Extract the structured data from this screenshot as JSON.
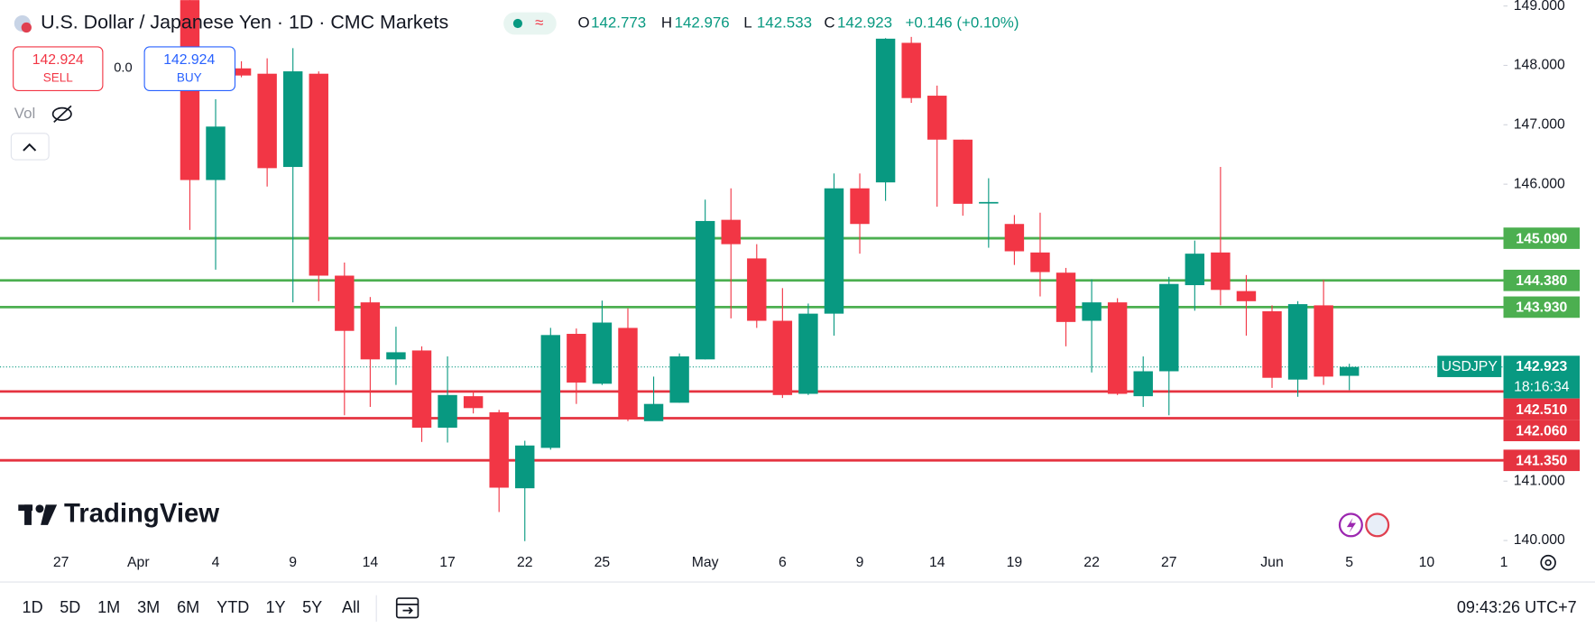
{
  "header": {
    "title": "U.S. Dollar / Japanese Yen · 1D · CMC Markets",
    "ohlc_labels": [
      "O",
      "H",
      "L",
      "C"
    ],
    "change": "+0.146 (+0.10%)"
  },
  "trade": {
    "sell_price": "142.924",
    "sell_label": "SELL",
    "spread": "0.0",
    "buy_price": "142.924",
    "buy_label": "BUY"
  },
  "indicators": {
    "vol": "Vol"
  },
  "logo": "TradingView",
  "toolbar": {
    "ranges": [
      "1D",
      "5D",
      "1M",
      "3M",
      "6M",
      "YTD",
      "1Y",
      "5Y",
      "All"
    ],
    "clock": "09:43:26 UTC+7"
  },
  "chart_data": {
    "type": "candlestick",
    "symbol": "USDJPY",
    "countdown": "18:16:34",
    "up_color": "#089981",
    "down_color": "#f23645",
    "grid": false,
    "categories": [
      "27",
      null,
      null,
      "Apr",
      null,
      null,
      "4",
      null,
      null,
      "9",
      null,
      null,
      "14",
      null,
      null,
      "17",
      null,
      null,
      "22",
      null,
      null,
      "25",
      null,
      null,
      null,
      "May",
      null,
      null,
      "6",
      null,
      null,
      "9",
      null,
      null,
      "14",
      null,
      null,
      "19",
      null,
      null,
      "22",
      null,
      null,
      "27",
      null,
      null,
      null,
      "Jun",
      null,
      null,
      "5",
      null,
      null,
      "10",
      null,
      null,
      "1"
    ],
    "open": [
      null,
      null,
      null,
      null,
      null,
      149.2,
      146.07,
      147.95,
      147.86,
      146.29,
      147.86,
      144.46,
      144.01,
      143.05,
      143.2,
      141.9,
      142.43,
      142.16,
      140.88,
      141.56,
      143.48,
      142.64,
      143.58,
      142.01,
      142.32,
      143.05,
      145.4,
      144.75,
      143.7,
      142.47,
      143.82,
      145.93,
      146.03,
      148.38,
      147.49,
      146.75,
      145.68,
      145.33,
      144.85,
      144.51,
      143.7,
      144.01,
      142.43,
      142.85,
      144.3,
      144.85,
      144.2,
      143.86,
      142.71,
      143.96,
      142.773,
      null,
      null,
      null,
      null,
      null,
      null
    ],
    "high": [
      null,
      null,
      null,
      null,
      null,
      149.4,
      147.43,
      148.07,
      148.12,
      148.29,
      147.9,
      144.68,
      144.1,
      143.6,
      143.27,
      143.1,
      142.52,
      142.2,
      141.68,
      143.58,
      143.57,
      144.04,
      143.91,
      142.76,
      143.15,
      145.74,
      145.93,
      144.99,
      144.25,
      143.99,
      146.18,
      146.18,
      148.46,
      148.48,
      147.66,
      146.75,
      146.1,
      145.48,
      145.52,
      144.59,
      144.4,
      144.08,
      143.1,
      144.44,
      145.05,
      146.29,
      144.47,
      143.96,
      144.03,
      144.39,
      142.976,
      null,
      null,
      null,
      null,
      null,
      null
    ],
    "low": [
      null,
      null,
      null,
      null,
      null,
      145.23,
      144.56,
      147.8,
      145.96,
      144.01,
      144.03,
      142.11,
      142.25,
      142.62,
      141.66,
      141.65,
      142.14,
      140.48,
      139.99,
      141.53,
      142.3,
      142.62,
      142.01,
      142.02,
      142.32,
      143.05,
      143.74,
      143.58,
      142.4,
      142.45,
      143.45,
      144.83,
      145.72,
      147.37,
      145.62,
      145.47,
      144.93,
      144.64,
      144.11,
      143.27,
      142.83,
      142.45,
      142.25,
      142.11,
      143.87,
      143.96,
      143.45,
      142.57,
      142.42,
      142.62,
      142.533,
      null,
      null,
      null,
      null,
      null,
      null
    ],
    "close": [
      null,
      null,
      null,
      null,
      null,
      146.07,
      146.97,
      147.83,
      146.27,
      147.9,
      144.46,
      143.53,
      143.05,
      143.17,
      141.9,
      142.45,
      142.23,
      140.89,
      141.6,
      143.46,
      142.66,
      143.67,
      142.04,
      142.3,
      143.1,
      145.38,
      144.99,
      143.7,
      142.45,
      143.82,
      145.93,
      145.33,
      148.45,
      147.45,
      146.75,
      145.67,
      145.7,
      144.87,
      144.52,
      143.68,
      144.01,
      142.47,
      142.85,
      144.32,
      144.83,
      144.22,
      144.03,
      142.74,
      143.98,
      142.76,
      142.923,
      null,
      null,
      null,
      null,
      null,
      null
    ],
    "ylim": [
      139.85,
      149.1
    ],
    "yticks": [
      {
        "value": 149,
        "label": "149.000"
      },
      {
        "value": 148,
        "label": "148.000"
      },
      {
        "value": 147,
        "label": "147.000"
      },
      {
        "value": 146,
        "label": "146.000"
      },
      {
        "value": 141,
        "label": "141.000"
      },
      {
        "value": 140,
        "label": "140.000"
      }
    ],
    "levels": [
      {
        "value": 145.09,
        "label": "145.090",
        "color": "#4caf50"
      },
      {
        "value": 144.38,
        "label": "144.380",
        "color": "#4caf50"
      },
      {
        "value": 143.93,
        "label": "143.930",
        "color": "#4caf50"
      },
      {
        "value": 142.51,
        "label": "142.510",
        "color": "#e53340"
      },
      {
        "value": 142.06,
        "label": "142.060",
        "color": "#e53340"
      },
      {
        "value": 141.35,
        "label": "141.350",
        "color": "#e53340"
      }
    ]
  }
}
